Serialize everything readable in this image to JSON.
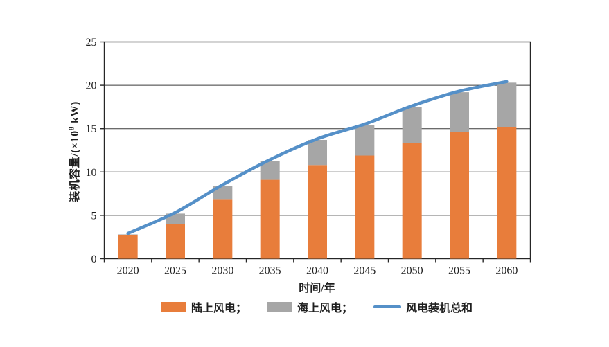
{
  "axes": {
    "y_title": {
      "prefix": "装机容量/(×10",
      "superscript": "8",
      "suffix": " kW)",
      "full": "装机容量/(×10⁸ kW)"
    },
    "x_title": "时间/年"
  },
  "legend": {
    "items": [
      {
        "label": "陆上风电；",
        "swatch": "rect",
        "color": "#E87D3B"
      },
      {
        "label": "海上风电；",
        "swatch": "rect",
        "color": "#A6A6A6"
      },
      {
        "label": "风电装机总和",
        "swatch": "line",
        "color": "#5590C8"
      }
    ]
  },
  "colors": {
    "onshore": "#E87D3B",
    "offshore": "#A6A6A6",
    "total_line": "#5590C8",
    "axis": "#262626",
    "grid": "#3a3a3a",
    "text": "#1f1f1f"
  },
  "chart_data": {
    "type": "bar",
    "subtype": "stacked-bars-with-smoothed-line-overlay",
    "title": "",
    "xlabel": "时间/年",
    "ylabel": "装机容量/(×10⁸ kW)",
    "categories": [
      "2020",
      "2025",
      "2030",
      "2035",
      "2040",
      "2045",
      "2050",
      "2055",
      "2060"
    ],
    "series": [
      {
        "name": "陆上风电",
        "type": "bar",
        "stacked": true,
        "color": "#E87D3B",
        "values": [
          2.7,
          4.0,
          6.8,
          9.1,
          10.8,
          11.9,
          13.3,
          14.6,
          15.2
        ]
      },
      {
        "name": "海上风电",
        "type": "bar",
        "stacked": true,
        "color": "#A6A6A6",
        "values": [
          0.1,
          1.2,
          1.6,
          2.2,
          2.9,
          3.5,
          4.2,
          4.6,
          5.1
        ]
      },
      {
        "name": "风电装机总和",
        "type": "line",
        "color": "#5590C8",
        "values": [
          2.8,
          5.2,
          8.4,
          11.3,
          13.7,
          15.4,
          17.5,
          19.2,
          20.3
        ]
      }
    ],
    "ylim": [
      0,
      25
    ],
    "y_ticks": [
      0,
      5,
      10,
      15,
      20,
      25
    ],
    "grid": true,
    "legend_position": "bottom"
  }
}
